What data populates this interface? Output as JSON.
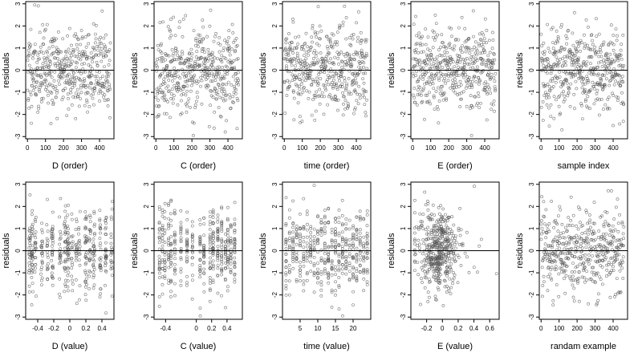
{
  "figure": {
    "ylabel": "residuals",
    "yticks": [
      -3,
      -2,
      -1,
      0,
      1,
      2,
      3
    ],
    "point_color": "#555555",
    "ref_line_color": "#000000"
  },
  "chart_data": [
    {
      "type": "scatter",
      "xlabel": "D (order)",
      "xlim": [
        -10,
        480
      ],
      "xticks": [
        0,
        100,
        200,
        300,
        400
      ],
      "ylim": [
        -3.1,
        3.1
      ],
      "hline": 0,
      "n": 460,
      "gen": {
        "mode": "uniform",
        "range": [
          0,
          460
        ],
        "seed": 11
      }
    },
    {
      "type": "scatter",
      "xlabel": "C (order)",
      "xlim": [
        -10,
        480
      ],
      "xticks": [
        0,
        100,
        200,
        300,
        400
      ],
      "ylim": [
        -3.1,
        3.1
      ],
      "hline": 0,
      "n": 460,
      "gen": {
        "mode": "uniform",
        "range": [
          0,
          460
        ],
        "seed": 23
      }
    },
    {
      "type": "scatter",
      "xlabel": "time (order)",
      "xlim": [
        -10,
        480
      ],
      "xticks": [
        0,
        100,
        200,
        300,
        400
      ],
      "ylim": [
        -3.1,
        3.1
      ],
      "hline": 0,
      "n": 460,
      "gen": {
        "mode": "uniform",
        "range": [
          0,
          460
        ],
        "seed": 37
      }
    },
    {
      "type": "scatter",
      "xlabel": "E (order)",
      "xlim": [
        -10,
        480
      ],
      "xticks": [
        0,
        100,
        200,
        300,
        400
      ],
      "ylim": [
        -3.1,
        3.1
      ],
      "hline": 0,
      "n": 460,
      "gen": {
        "mode": "uniform",
        "range": [
          0,
          460
        ],
        "seed": 41
      }
    },
    {
      "type": "scatter",
      "xlabel": "sample index",
      "xlim": [
        -10,
        480
      ],
      "xticks": [
        0,
        100,
        200,
        300,
        400
      ],
      "ylim": [
        -3.1,
        3.1
      ],
      "hline": 0,
      "n": 460,
      "gen": {
        "mode": "uniform",
        "range": [
          0,
          460
        ],
        "seed": 53
      }
    },
    {
      "type": "scatter",
      "xlabel": "D (value)",
      "xlim": [
        -0.55,
        0.55
      ],
      "xticks": [
        -0.4,
        -0.2,
        0.0,
        0.2,
        0.4
      ],
      "ylim": [
        -3.1,
        3.1
      ],
      "hline": 0,
      "n": 460,
      "gen": {
        "mode": "columns",
        "seed": 61,
        "jitter": 0.02,
        "cols": [
          -0.5,
          -0.47,
          -0.43,
          -0.35,
          -0.28,
          -0.22,
          -0.12,
          -0.06,
          -0.02,
          0.03,
          0.08,
          0.12,
          0.2,
          0.25,
          0.3,
          0.38,
          0.45,
          0.52
        ]
      }
    },
    {
      "type": "scatter",
      "xlabel": "C (value)",
      "xlim": [
        -0.55,
        0.6
      ],
      "xticks": [
        -0.4,
        0.0,
        0.2,
        0.4
      ],
      "ylim": [
        -3.1,
        3.1
      ],
      "hline": 0,
      "n": 460,
      "gen": {
        "mode": "columns",
        "seed": 71,
        "jitter": 0.004,
        "cols": [
          -0.48,
          -0.44,
          -0.41,
          -0.36,
          -0.33,
          -0.28,
          -0.2,
          -0.12,
          -0.05,
          0.05,
          0.1,
          0.18,
          0.22,
          0.28,
          0.33,
          0.38,
          0.41,
          0.45,
          0.5
        ]
      }
    },
    {
      "type": "scatter",
      "xlabel": "time (value)",
      "xlim": [
        0,
        25
      ],
      "xticks": [
        5,
        10,
        15,
        20
      ],
      "ylim": [
        -3.1,
        3.1
      ],
      "hline": 0,
      "n": 460,
      "gen": {
        "mode": "columns",
        "seed": 83,
        "jitter": 0.05,
        "cols": [
          1,
          2,
          3,
          4,
          5,
          6,
          7,
          8,
          9,
          10,
          11,
          12,
          13,
          14,
          15,
          16,
          17,
          18,
          19,
          20,
          21,
          22,
          23,
          24
        ]
      }
    },
    {
      "type": "scatter",
      "xlabel": "E (value)",
      "xlim": [
        -0.4,
        0.72
      ],
      "xticks": [
        -0.2,
        0.0,
        0.2,
        0.4,
        0.6
      ],
      "ylim": [
        -3.1,
        3.1
      ],
      "hline": 0,
      "n": 460,
      "gen": {
        "mode": "skewed",
        "seed": 97,
        "center": -0.05,
        "spread": 0.12,
        "min": -0.35,
        "max": 0.7
      }
    },
    {
      "type": "scatter",
      "xlabel": "randam example",
      "xlim": [
        -10,
        480
      ],
      "xticks": [
        0,
        100,
        200,
        300,
        400
      ],
      "ylim": [
        -3.1,
        3.1
      ],
      "hline": 0,
      "n": 460,
      "gen": {
        "mode": "uniform",
        "range": [
          0,
          460
        ],
        "seed": 101
      }
    }
  ]
}
